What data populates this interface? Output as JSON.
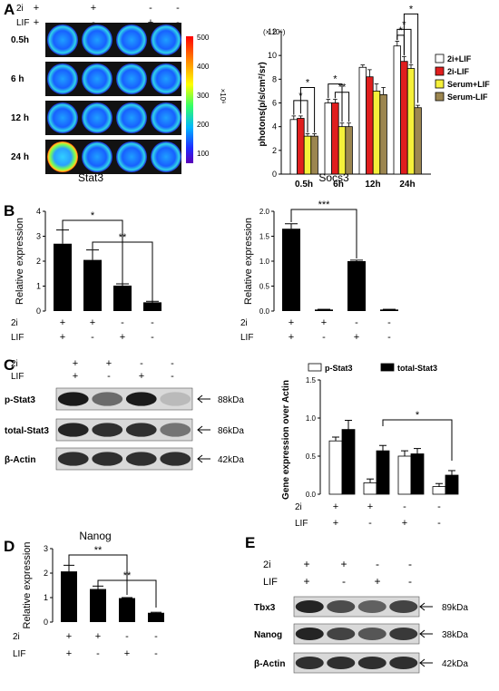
{
  "panels": {
    "A": "A",
    "B": "B",
    "C": "C",
    "D": "D",
    "E": "E"
  },
  "conditions": {
    "row1_label": "2i",
    "row2_label": "LIF",
    "row1_marks": [
      "+",
      "+",
      "-",
      "-"
    ],
    "row2_marks": [
      "+",
      "-",
      "+",
      "-"
    ]
  },
  "panelA": {
    "times": [
      "0.5h",
      "6 h",
      "12 h",
      "24 h"
    ],
    "colorbar_ticks": [
      "500",
      "400",
      "300",
      "200",
      "100"
    ],
    "colorbar_unit": "×10⁶",
    "colors": {
      "well_bg": "#1b1fd4",
      "colorbar_top": "#ff0000",
      "colorbar_bottom": "#5b00b8"
    }
  },
  "panelC_blot": {
    "rows": [
      "p-Stat3",
      "total-Stat3",
      "β-Actin"
    ],
    "sizes": [
      "88kDa",
      "86kDa",
      "42kDa"
    ],
    "band_intensity": [
      [
        0.95,
        0.55,
        0.95,
        0.15
      ],
      [
        0.9,
        0.85,
        0.85,
        0.5
      ],
      [
        0.85,
        0.85,
        0.85,
        0.85
      ]
    ]
  },
  "panelE_blot": {
    "rows": [
      "Tbx3",
      "Nanog",
      "β-Actin"
    ],
    "sizes": [
      "89kDa",
      "38kDa",
      "42kDa"
    ],
    "band_intensity": [
      [
        0.9,
        0.7,
        0.6,
        0.75
      ],
      [
        0.9,
        0.75,
        0.65,
        0.8
      ],
      [
        0.85,
        0.85,
        0.85,
        0.85
      ]
    ]
  },
  "chart_data": [
    {
      "id": "A-bar",
      "type": "bar",
      "ylabel": "photons(p/s/cm²/sr)",
      "ylabel_multiplier": "(× 10⁶)",
      "categories": [
        "0.5h",
        "6h",
        "12h",
        "24h"
      ],
      "ylim": [
        0,
        12
      ],
      "yticks": [
        0,
        2,
        4,
        6,
        8,
        10,
        12
      ],
      "legend_position": "right",
      "series": [
        {
          "name": "2i+LIF",
          "color": "#ffffff",
          "values": [
            4.6,
            6.0,
            9.0,
            10.8
          ],
          "errors": [
            0.3,
            0.3,
            0.2,
            0.4
          ]
        },
        {
          "name": "2i-LIF",
          "color": "#e01e1e",
          "values": [
            4.7,
            6.0,
            8.2,
            9.5
          ],
          "errors": [
            0.2,
            0.3,
            0.6,
            0.4
          ]
        },
        {
          "name": "Serum+LIF",
          "color": "#f5f03a",
          "values": [
            3.2,
            4.0,
            7.0,
            8.9
          ],
          "errors": [
            0.2,
            0.3,
            0.6,
            0.3
          ]
        },
        {
          "name": "Serum-LIF",
          "color": "#9c8650",
          "values": [
            3.2,
            4.0,
            6.7,
            5.6
          ],
          "errors": [
            0.2,
            0.3,
            0.6,
            0.2
          ]
        }
      ],
      "significance": [
        "*",
        "*",
        "*",
        "**",
        "*",
        "*",
        "*"
      ]
    },
    {
      "id": "B-stat3",
      "type": "bar",
      "title": "Stat3",
      "ylabel": "Relative expression",
      "ylim": [
        0,
        4
      ],
      "yticks": [
        0,
        1,
        2,
        3,
        4
      ],
      "values": [
        2.7,
        2.05,
        1.02,
        0.35
      ],
      "errors": [
        0.55,
        0.4,
        0.07,
        0.04
      ],
      "significance": [
        "*",
        "**"
      ]
    },
    {
      "id": "B-socs3",
      "type": "bar",
      "title": "Socs3",
      "ylabel": "Relative expression",
      "ylim": [
        0,
        2.0
      ],
      "yticks": [
        0.0,
        0.5,
        1.0,
        1.5,
        2.0
      ],
      "ytick_labels": [
        "0.0",
        "0.5",
        "1.0",
        "1.5",
        "2.0"
      ],
      "values": [
        1.65,
        0.03,
        1.0,
        0.03
      ],
      "errors": [
        0.1,
        0.005,
        0.02,
        0.005
      ],
      "significance": [
        "***"
      ]
    },
    {
      "id": "C-bar",
      "type": "bar",
      "ylabel": "Gene expression over Actin",
      "ylim": [
        0,
        1.5
      ],
      "yticks": [
        0,
        0.5,
        1.0,
        1.5
      ],
      "ytick_labels": [
        "0.0",
        "0.5",
        "1.0",
        "1.5"
      ],
      "series": [
        {
          "name": "p-Stat3",
          "color": "#ffffff",
          "values": [
            0.7,
            0.15,
            0.5,
            0.1
          ],
          "errors": [
            0.05,
            0.05,
            0.07,
            0.04
          ]
        },
        {
          "name": "total-Stat3",
          "color": "#000000",
          "values": [
            0.85,
            0.57,
            0.53,
            0.25
          ],
          "errors": [
            0.12,
            0.07,
            0.07,
            0.06
          ]
        }
      ],
      "significance": [
        "*"
      ]
    },
    {
      "id": "D-nanog",
      "type": "bar",
      "title": "Nanog",
      "ylabel": "Relative expression",
      "ylim": [
        0,
        3
      ],
      "yticks": [
        0,
        1,
        2,
        3
      ],
      "values": [
        2.07,
        1.35,
        0.98,
        0.38
      ],
      "errors": [
        0.25,
        0.12,
        0.02,
        0.02
      ],
      "significance": [
        "**",
        "**"
      ]
    }
  ]
}
